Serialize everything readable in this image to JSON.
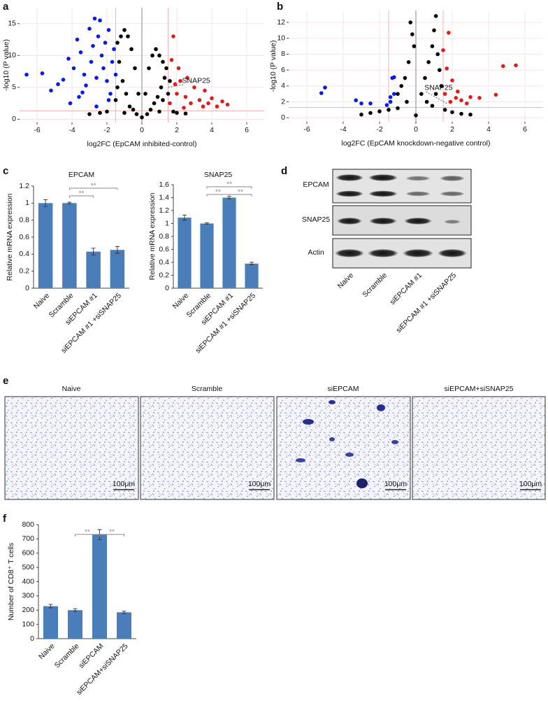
{
  "chart_data": [
    {
      "panel": "a",
      "type": "scatter",
      "xlabel": "log2FC (EpCAM inhibited-control)",
      "ylabel": "-log10 (P value)",
      "xlim": [
        -7,
        7
      ],
      "ylim": [
        -0.5,
        17.5
      ],
      "xticks": [
        -6,
        -4,
        -2,
        0,
        2,
        4,
        6
      ],
      "yticks": [
        0,
        5,
        10,
        15
      ],
      "grid": true,
      "thresholds": {
        "x": [
          -1.5,
          1.5
        ],
        "y": 1.3
      },
      "series": [
        {
          "color": "#000000",
          "x": [
            -3,
            -2.4,
            -2,
            -1.5,
            -1.4,
            -1.4,
            -1.3,
            -1.2,
            -1.1,
            -1,
            -1,
            -0.9,
            -0.8,
            -0.7,
            -0.6,
            -0.5,
            -0.4,
            -0.3,
            -0.2,
            0,
            0.2,
            0.3,
            0.4,
            0.5,
            0.6,
            0.7,
            0.8,
            0.9,
            1,
            1,
            1.1,
            1.2,
            1.2,
            1.3,
            1.4,
            1.5,
            1.6,
            1.8,
            2,
            2.5
          ],
          "values": [
            0.8,
            1,
            1.2,
            3,
            12,
            5,
            9,
            13,
            6,
            14,
            1,
            4,
            13,
            2,
            11,
            1.5,
            8,
            0.8,
            4,
            0.3,
            4,
            0.8,
            8,
            1.5,
            10,
            2.5,
            11,
            3.5,
            10,
            1.2,
            5,
            9,
            3,
            6.5,
            8,
            4,
            6,
            1.2,
            1,
            0.9
          ]
        },
        {
          "color": "#0a1be6",
          "x": [
            -6.6,
            -5.7,
            -5.2,
            -4.8,
            -4.5,
            -4.2,
            -4.1,
            -3.9,
            -3.7,
            -3.6,
            -3.5,
            -3.4,
            -3.3,
            -3.2,
            -3,
            -2.9,
            -2.8,
            -2.7,
            -2.6,
            -2.6,
            -2.5,
            -2.4,
            -2.3,
            -2.2,
            -2.1,
            -2,
            -1.9,
            -1.9,
            -1.8,
            -1.7,
            -1.6,
            -1.5
          ],
          "values": [
            7,
            7.2,
            4.5,
            5.5,
            6.2,
            9.5,
            2.5,
            8,
            12.5,
            3.5,
            10.5,
            4.2,
            7,
            5.3,
            14.2,
            9,
            11.5,
            15.8,
            6.5,
            2,
            13,
            15.5,
            10,
            8,
            12,
            6,
            14,
            3,
            4,
            9,
            11,
            7
          ]
        },
        {
          "color": "#e21a1a",
          "x": [
            1.6,
            1.7,
            1.8,
            1.9,
            2,
            2.1,
            2.2,
            2.4,
            2.5,
            2.6,
            2.8,
            3,
            3.3,
            3.5,
            3.6,
            3.8,
            4,
            4.3,
            4.6,
            4.9
          ],
          "values": [
            2.5,
            9.3,
            13,
            5.5,
            4,
            8,
            6,
            1.8,
            3.5,
            6.5,
            2.5,
            5,
            3,
            2,
            4.5,
            2.5,
            3.3,
            2,
            2.8,
            2.3
          ]
        }
      ],
      "annotations": [
        {
          "text": "SNAP25",
          "x": 1.5,
          "y": 5
        }
      ]
    },
    {
      "panel": "b",
      "type": "scatter",
      "xlabel": "log2FC (EpCAM knockdown-negative control)",
      "ylabel": "-log10 (P value)",
      "xlim": [
        -7,
        7
      ],
      "ylim": [
        -0.5,
        13.5
      ],
      "xticks": [
        -6,
        -4,
        -2,
        0,
        2,
        4,
        6
      ],
      "yticks": [
        0,
        2,
        4,
        6,
        8,
        10,
        12
      ],
      "grid": true,
      "thresholds": {
        "x": [
          -1.5,
          1.5
        ],
        "y": 1.3
      },
      "series": [
        {
          "color": "#000000",
          "x": [
            -3,
            -2.5,
            -2,
            -1.5,
            -1,
            -1,
            -0.8,
            -0.6,
            -0.5,
            -0.4,
            -0.3,
            -0.2,
            -0.1,
            0,
            0.3,
            0.5,
            0.6,
            0.7,
            0.9,
            0.9,
            1,
            1.1,
            1.1,
            1.2,
            1.3,
            1.4,
            1.6,
            2,
            2.5,
            3
          ],
          "values": [
            0.4,
            0.6,
            0.8,
            1,
            3,
            1.2,
            4,
            5,
            2,
            7,
            12,
            10.5,
            9,
            0.3,
            3,
            5,
            2,
            7,
            9,
            1.5,
            11,
            12.8,
            3,
            8,
            6,
            4,
            1,
            0.7,
            0.5,
            0.4
          ]
        },
        {
          "color": "#0a1be6",
          "x": [
            -5.2,
            -5,
            -3.3,
            -3,
            -2.5,
            -1.6,
            -1.4,
            -1.4,
            -1.3,
            -1.2,
            -1.2
          ],
          "values": [
            3.1,
            3.8,
            2.2,
            1.8,
            1.8,
            1.6,
            2,
            2.6,
            5,
            3,
            5.1
          ]
        },
        {
          "color": "#e21a1a",
          "x": [
            1.5,
            1.6,
            1.7,
            1.8,
            1.9,
            2,
            2.2,
            2.3,
            2.5,
            2.8,
            3,
            3.5,
            4.4,
            4.8,
            5.5
          ],
          "values": [
            8.5,
            3,
            6.2,
            10.7,
            2,
            4.7,
            2.5,
            3.3,
            2.2,
            1.8,
            2.6,
            2.5,
            2.9,
            6.5,
            6.6
          ]
        }
      ],
      "annotations": [
        {
          "text": "SNAP25",
          "x": 1.7,
          "y": 1.8
        }
      ]
    },
    {
      "panel": "c",
      "type": "bar",
      "title": "EPCAM",
      "ylabel": "Relative mRNA expression",
      "categories": [
        "Naive",
        "Scramble",
        "siEPCAM #1",
        "siEPCAM #1 +siSNAP25"
      ],
      "values": [
        1,
        1,
        0.43,
        0.45
      ],
      "errors": [
        0.04,
        0.01,
        0.04,
        0.04
      ],
      "color": "#4a7ebb",
      "ylim": [
        0,
        1.2
      ],
      "yticks": [
        0,
        0.2,
        0.4,
        0.6,
        0.8,
        1,
        1.2
      ],
      "significance": [
        {
          "from": 1,
          "to": 2,
          "label": "**"
        },
        {
          "from": 1,
          "to": 3,
          "label": "**"
        }
      ]
    },
    {
      "type": "bar",
      "title": "SNAP25",
      "ylabel": "Relative mRNA expression",
      "categories": [
        "Naive",
        "Scramble",
        "siEPCAM #1",
        "siEPCAM #1 +siSNAP25"
      ],
      "values": [
        1.09,
        1,
        1.4,
        0.38
      ],
      "errors": [
        0.04,
        0.01,
        0.02,
        0.02
      ],
      "color": "#4a7ebb",
      "ylim": [
        0,
        1.6
      ],
      "yticks": [
        0,
        0.2,
        0.4,
        0.6,
        0.8,
        1,
        1.2,
        1.4,
        1.6
      ],
      "significance": [
        {
          "from": 1,
          "to": 2,
          "label": "**"
        },
        {
          "from": 2,
          "to": 3,
          "label": "**"
        },
        {
          "from": 1,
          "to": 3,
          "label": "**"
        }
      ]
    },
    {
      "panel": "f",
      "type": "bar",
      "ylabel": "Number of CD8⁺ T cells",
      "categories": [
        "Naive",
        "Scramble",
        "siEPCAM",
        "siEPCAM+siSNAP25"
      ],
      "values": [
        228,
        200,
        730,
        185
      ],
      "errors": [
        12,
        10,
        35,
        8
      ],
      "color": "#4a7ebb",
      "ylim": [
        0,
        800
      ],
      "yticks": [
        0,
        100,
        200,
        300,
        400,
        500,
        600,
        700,
        800
      ],
      "significance": [
        {
          "from": 1,
          "to": 2,
          "label": "**"
        },
        {
          "from": 2,
          "to": 3,
          "label": "**"
        }
      ]
    }
  ],
  "blot": {
    "panel": "d",
    "rows": [
      "EPCAM",
      "SNAP25",
      "Actin"
    ],
    "lanes": [
      "Naive",
      "Scramble",
      "siEPCAM #1",
      "siEPCAM #1 +siSNAP25"
    ]
  },
  "micrographs": {
    "panel": "e",
    "images": [
      {
        "label": "Naive",
        "scale_bar": "100μm"
      },
      {
        "label": "Scramble",
        "scale_bar": "100μm"
      },
      {
        "label": "siEPCAM",
        "scale_bar": "100μm"
      },
      {
        "label": "siEPCAM+siSNAP25",
        "scale_bar": "100μm"
      }
    ]
  }
}
